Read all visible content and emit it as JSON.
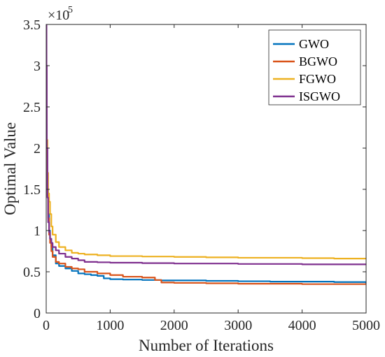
{
  "chart_data": {
    "type": "line",
    "title": "",
    "xlabel": "Number of Iterations",
    "ylabel": "Optimal Value",
    "xlim": [
      0,
      5000
    ],
    "ylim": [
      0,
      350000
    ],
    "x_ticks": [
      0,
      1000,
      2000,
      3000,
      4000,
      5000
    ],
    "x_tick_labels": [
      "0",
      "1000",
      "2000",
      "3000",
      "4000",
      "5000"
    ],
    "y_ticks": [
      0,
      50000,
      100000,
      150000,
      200000,
      250000,
      300000,
      350000
    ],
    "y_tick_labels": [
      "0",
      "0.5",
      "1",
      "1.5",
      "2",
      "2.5",
      "3",
      "3.5"
    ],
    "y_exponent_base": "×10",
    "y_exponent_power": "5",
    "grid": false,
    "legend_position": "top-right",
    "series": [
      {
        "name": "GWO",
        "color": "#0072BD",
        "x": [
          0,
          10,
          20,
          30,
          45,
          60,
          80,
          100,
          150,
          200,
          300,
          400,
          500,
          600,
          700,
          800,
          900,
          1000,
          1200,
          1500,
          1800,
          2000,
          2500,
          3000,
          3500,
          4000,
          4500,
          5000
        ],
        "y": [
          230000,
          200000,
          150000,
          120000,
          100000,
          90000,
          80000,
          70000,
          60000,
          57000,
          54000,
          51000,
          48000,
          47000,
          46000,
          45000,
          42000,
          41000,
          40500,
          40000,
          39500,
          39500,
          39000,
          38500,
          38000,
          38000,
          37500,
          36000
        ]
      },
      {
        "name": "BGWO",
        "color": "#D95319",
        "x": [
          0,
          10,
          20,
          30,
          45,
          60,
          80,
          100,
          150,
          200,
          300,
          400,
          500,
          600,
          800,
          1000,
          1200,
          1500,
          1700,
          1800,
          2000,
          2500,
          3000,
          3500,
          4000,
          4500,
          5000
        ],
        "y": [
          240000,
          190000,
          140000,
          115000,
          95000,
          85000,
          75000,
          68000,
          62000,
          60000,
          56000,
          54000,
          53000,
          50000,
          48000,
          46000,
          44000,
          43000,
          40000,
          37000,
          36500,
          36000,
          35500,
          35500,
          35000,
          35000,
          34500
        ]
      },
      {
        "name": "FGWO",
        "color": "#EDB120",
        "x": [
          0,
          10,
          20,
          30,
          45,
          60,
          80,
          100,
          150,
          200,
          300,
          400,
          500,
          600,
          800,
          1000,
          1500,
          2000,
          2500,
          3000,
          3500,
          4000,
          4500,
          5000
        ],
        "y": [
          250000,
          210000,
          170000,
          145000,
          135000,
          120000,
          105000,
          95000,
          86000,
          80000,
          76000,
          73000,
          72000,
          71000,
          70000,
          69000,
          68500,
          68000,
          67500,
          67000,
          67000,
          66500,
          66000,
          65000
        ]
      },
      {
        "name": "ISGWO",
        "color": "#7E2F8E",
        "x": [
          0,
          5,
          10,
          20,
          30,
          45,
          60,
          80,
          100,
          150,
          200,
          300,
          400,
          500,
          600,
          800,
          1000,
          1500,
          2000,
          2500,
          3000,
          3500,
          4000,
          4500,
          5000
        ],
        "y": [
          350000,
          300000,
          200000,
          140000,
          110000,
          98000,
          90000,
          85000,
          80000,
          76000,
          72000,
          68000,
          66000,
          64000,
          62000,
          61500,
          61000,
          60500,
          60000,
          60000,
          59500,
          59500,
          59000,
          59000,
          59000
        ]
      }
    ]
  }
}
